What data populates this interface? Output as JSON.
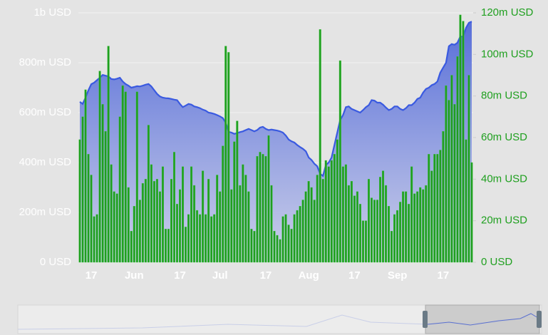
{
  "chart_data": {
    "type": "combo",
    "categories": [
      null,
      null,
      null,
      null,
      "17",
      null,
      null,
      null,
      null,
      null,
      null,
      null,
      null,
      null,
      null,
      null,
      null,
      null,
      null,
      "Jun",
      null,
      null,
      null,
      null,
      null,
      null,
      null,
      null,
      null,
      null,
      null,
      null,
      null,
      null,
      null,
      "17",
      null,
      null,
      null,
      null,
      null,
      null,
      null,
      null,
      null,
      null,
      null,
      null,
      null,
      "Jul",
      null,
      null,
      null,
      null,
      null,
      null,
      null,
      null,
      null,
      null,
      null,
      null,
      null,
      null,
      null,
      "17",
      null,
      null,
      null,
      null,
      null,
      null,
      null,
      null,
      null,
      null,
      null,
      null,
      null,
      null,
      "Aug",
      null,
      null,
      null,
      null,
      null,
      null,
      null,
      null,
      null,
      null,
      null,
      null,
      null,
      null,
      null,
      "17",
      null,
      null,
      null,
      null,
      null,
      null,
      null,
      null,
      null,
      null,
      null,
      null,
      null,
      null,
      "Sep",
      null,
      null,
      null,
      null,
      null,
      null,
      null,
      null,
      null,
      null,
      null,
      null,
      null,
      null,
      null,
      "17",
      null,
      null,
      null,
      null,
      null,
      null,
      null,
      null,
      null,
      null
    ],
    "series": [
      {
        "type": "area",
        "color": "#3a5ae0",
        "values": [
          643,
          635,
          660,
          690,
          714,
          720,
          730,
          740,
          751,
          748,
          745,
          735,
          733,
          736,
          740,
          725,
          715,
          708,
          700,
          703,
          706,
          705,
          708,
          712,
          715,
          705,
          690,
          675,
          665,
          660,
          658,
          657,
          655,
          652,
          650,
          635,
          622,
          628,
          635,
          632,
          625,
          622,
          618,
          612,
          608,
          600,
          598,
          595,
          590,
          585,
          578,
          560,
          523,
          520,
          515,
          518,
          522,
          525,
          530,
          535,
          530,
          525,
          530,
          540,
          543,
          535,
          530,
          532,
          530,
          528,
          525,
          520,
          508,
          492,
          485,
          480,
          470,
          462,
          455,
          445,
          420,
          410,
          395,
          385,
          355,
          346,
          390,
          400,
          420,
          470,
          520,
          570,
          590,
          622,
          625,
          615,
          610,
          605,
          600,
          610,
          622,
          630,
          650,
          648,
          640,
          640,
          632,
          620,
          610,
          615,
          625,
          625,
          615,
          610,
          618,
          630,
          630,
          640,
          655,
          660,
          680,
          695,
          700,
          710,
          715,
          725,
          760,
          780,
          800,
          866,
          875,
          872,
          880,
          905,
          905,
          940,
          960,
          965
        ]
      },
      {
        "type": "bar",
        "axis": "y2",
        "color": "#1e9e1e",
        "values": [
          59,
          70,
          83,
          52,
          42,
          22,
          23,
          92,
          76,
          63,
          104,
          47,
          34,
          33,
          70,
          85,
          82,
          36,
          15,
          27,
          82,
          30,
          38,
          40,
          66,
          47,
          39,
          40,
          34,
          46,
          16,
          16,
          40,
          53,
          28,
          35,
          46,
          17,
          23,
          46,
          37,
          25,
          23,
          44,
          23,
          40,
          22,
          23,
          42,
          34,
          56,
          104,
          101,
          35,
          58,
          68,
          37,
          47,
          42,
          34,
          16,
          15,
          51,
          53,
          52,
          51,
          61,
          37,
          15,
          13,
          11,
          22,
          23,
          18,
          16,
          23,
          25,
          27,
          30,
          34,
          39,
          36,
          30,
          42,
          112,
          40,
          49,
          46,
          49,
          52,
          59,
          97,
          46,
          47,
          37,
          39,
          32,
          34,
          28,
          20,
          20,
          40,
          31,
          30,
          30,
          41,
          44,
          37,
          27,
          15,
          23,
          25,
          29,
          34,
          34,
          28,
          46,
          33,
          34,
          36,
          35,
          37,
          52,
          44,
          52,
          52,
          54,
          63,
          85,
          78,
          90,
          76,
          99,
          119,
          116,
          59,
          90,
          48
        ]
      }
    ],
    "ylim": [
      0,
      1000
    ],
    "yticks": [
      {
        "value": 0,
        "label": "0 USD"
      },
      {
        "value": 200,
        "label": "200m USD"
      },
      {
        "value": 400,
        "label": "400m USD"
      },
      {
        "value": 600,
        "label": "600m USD"
      },
      {
        "value": 800,
        "label": "800m USD"
      },
      {
        "value": 1000,
        "label": "1b USD"
      }
    ],
    "y2lim": [
      0,
      120
    ],
    "y2ticks": [
      {
        "value": 0,
        "label": "0 USD"
      },
      {
        "value": 20,
        "label": "20m USD"
      },
      {
        "value": 40,
        "label": "40m USD"
      },
      {
        "value": 60,
        "label": "60m USD"
      },
      {
        "value": 80,
        "label": "80m USD"
      },
      {
        "value": 100,
        "label": "100m USD"
      },
      {
        "value": 120,
        "label": "120m USD"
      }
    ],
    "grid": true
  }
}
